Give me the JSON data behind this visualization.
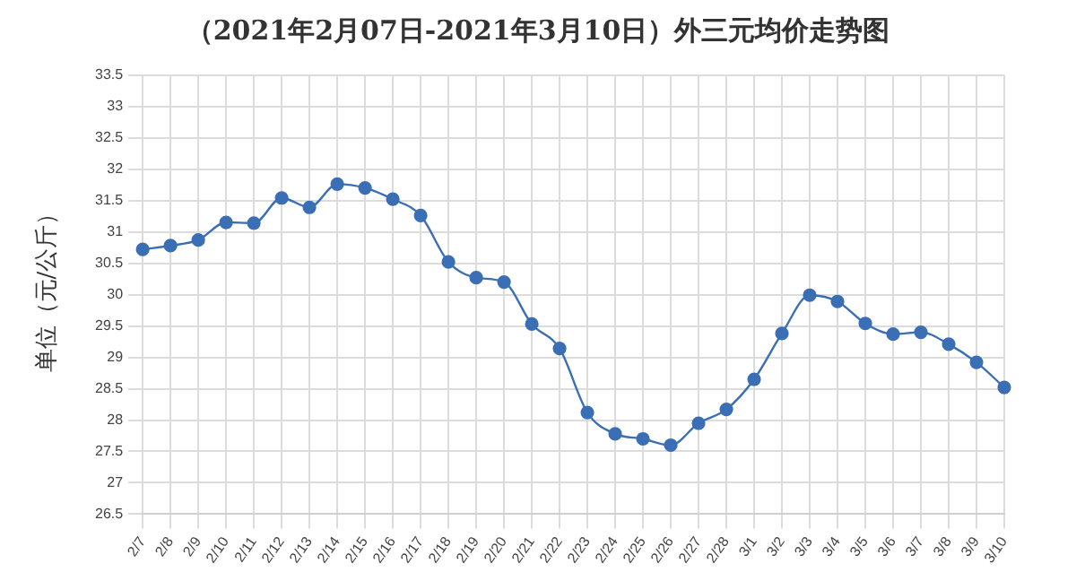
{
  "chart_data": {
    "type": "line",
    "title": "（2021年2月07日-2021年3月10日）外三元均价走势图",
    "ylabel": "单位（元/公斤）",
    "categories": [
      "2/7",
      "2/8",
      "2/9",
      "2/10",
      "2/11",
      "2/12",
      "2/13",
      "2/14",
      "2/15",
      "2/16",
      "2/17",
      "2/18",
      "2/19",
      "2/20",
      "2/21",
      "2/22",
      "2/23",
      "2/24",
      "2/25",
      "2/26",
      "2/27",
      "2/28",
      "3/1",
      "3/2",
      "3/3",
      "3/4",
      "3/5",
      "3/6",
      "3/7",
      "3/8",
      "3/9",
      "3/10"
    ],
    "series": [
      {
        "color": "#3a6fb5",
        "values": [
          30.72,
          30.78,
          30.87,
          31.15,
          31.14,
          31.54,
          31.39,
          31.76,
          31.7,
          31.52,
          31.26,
          30.52,
          30.27,
          30.2,
          29.53,
          29.14,
          28.12,
          27.78,
          27.7,
          27.6,
          27.95,
          28.17,
          28.65,
          29.38,
          29.99,
          29.89,
          29.54,
          29.37,
          29.4,
          29.21,
          28.92,
          28.52
        ]
      }
    ],
    "ylim": [
      26.5,
      33.5
    ],
    "yticks": [
      26.5,
      27,
      27.5,
      28,
      28.5,
      29,
      29.5,
      30,
      30.5,
      31,
      31.5,
      32,
      32.5,
      33,
      33.5
    ],
    "grid": true,
    "marker": "circle",
    "legend": false
  }
}
